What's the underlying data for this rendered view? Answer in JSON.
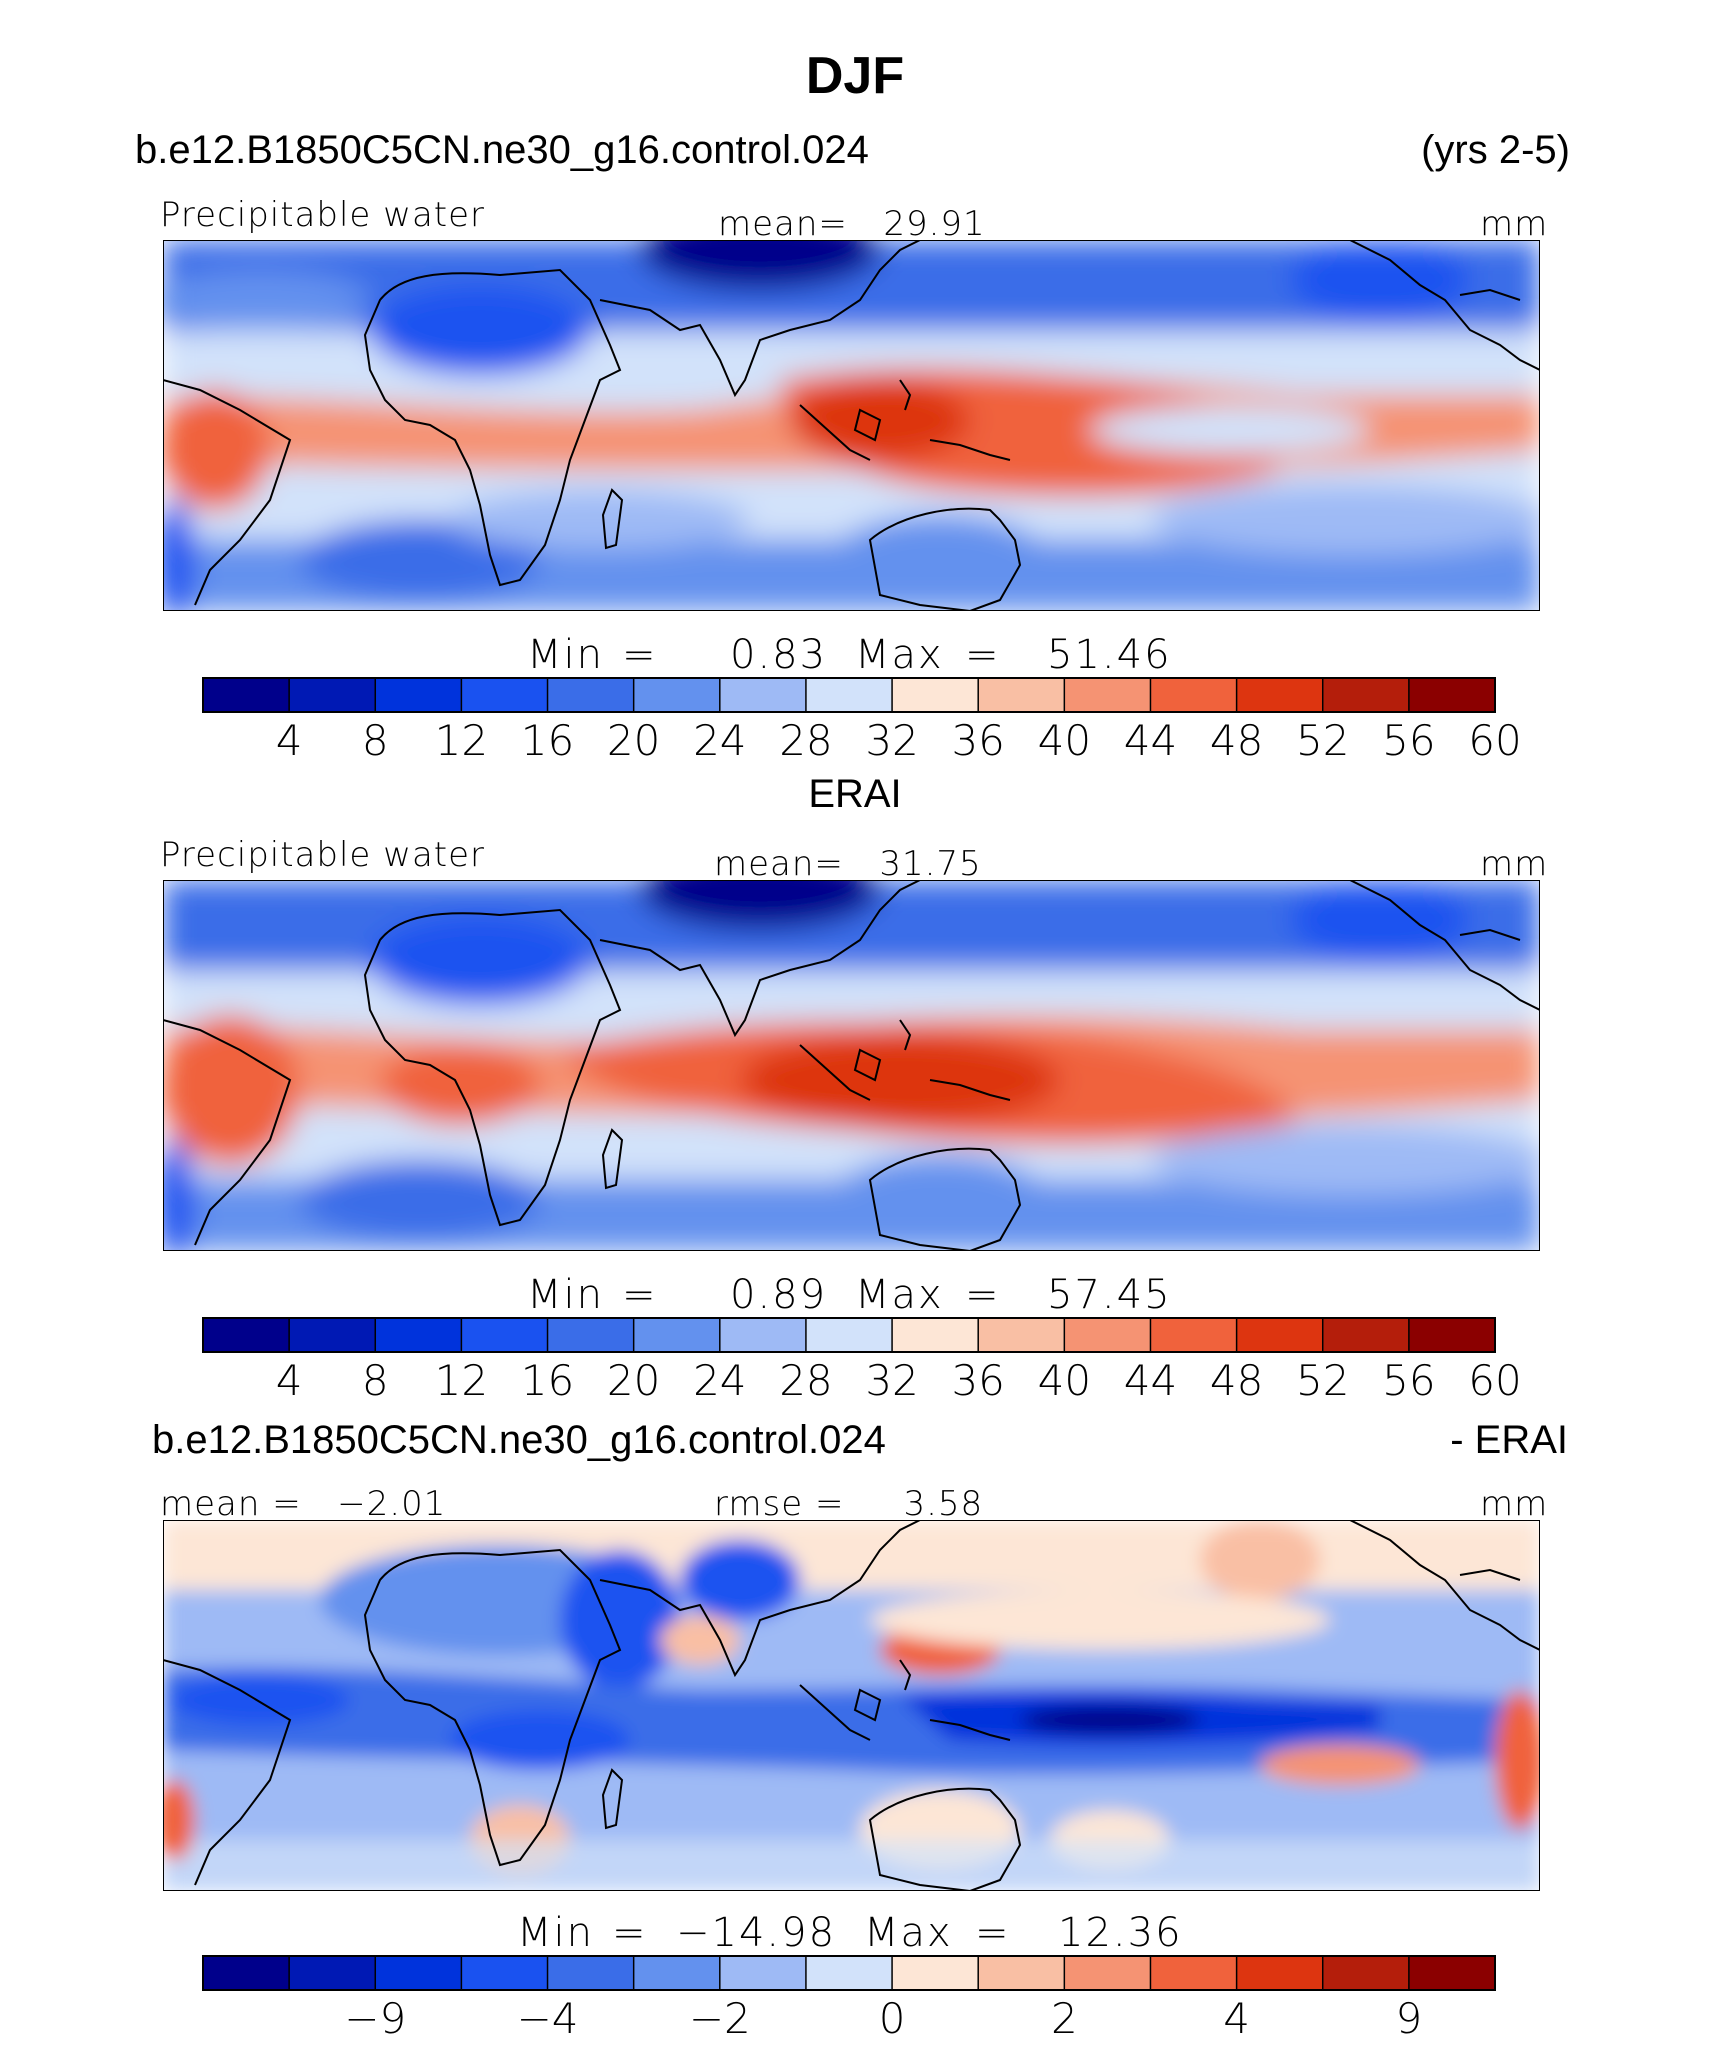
{
  "title": "DJF",
  "panels": [
    {
      "id": "model",
      "header_left": "b.e12.B1850C5CN.ne30_g16.control.024",
      "header_right": "(yrs 2-5)",
      "field_label": "Precipitable water",
      "center_label": "mean=   29.91",
      "units": "mm",
      "min_label": "Min",
      "min_value": "0.83",
      "max_label": "Max",
      "max_value": "51.46",
      "colorbar_ticks": [
        "4",
        "8",
        "12",
        "16",
        "20",
        "24",
        "28",
        "32",
        "36",
        "40",
        "44",
        "48",
        "52",
        "56",
        "60"
      ]
    },
    {
      "id": "obs",
      "header_left": "",
      "header_center": "ERAI",
      "field_label": "Precipitable water",
      "center_label": "mean=   31.75",
      "units": "mm",
      "min_label": "Min",
      "min_value": "0.89",
      "max_label": "Max",
      "max_value": "57.45",
      "colorbar_ticks": [
        "4",
        "8",
        "12",
        "16",
        "20",
        "24",
        "28",
        "32",
        "36",
        "40",
        "44",
        "48",
        "52",
        "56",
        "60"
      ]
    },
    {
      "id": "diff",
      "header_left": "b.e12.B1850C5CN.ne30_g16.control.024",
      "header_right": "- ERAI",
      "field_label": "mean =   −2.01",
      "center_label": "rmse =     3.58",
      "units": "mm",
      "min_label": "Min",
      "min_value": "−14.98",
      "max_label": "Max",
      "max_value": "12.36",
      "colorbar_ticks": [
        "−9",
        "−4",
        "−2",
        "0",
        "2",
        "4",
        "9"
      ]
    }
  ],
  "palette": [
    "#00008b",
    "#0019b4",
    "#0033dc",
    "#1a52f0",
    "#3a6de8",
    "#6391ee",
    "#9ebaf5",
    "#d2e2fa",
    "#fde6d6",
    "#f9bfa4",
    "#f59373",
    "#f0623c",
    "#dd3510",
    "#b41e0b",
    "#8b0000"
  ],
  "coastline_color": "#000000"
}
